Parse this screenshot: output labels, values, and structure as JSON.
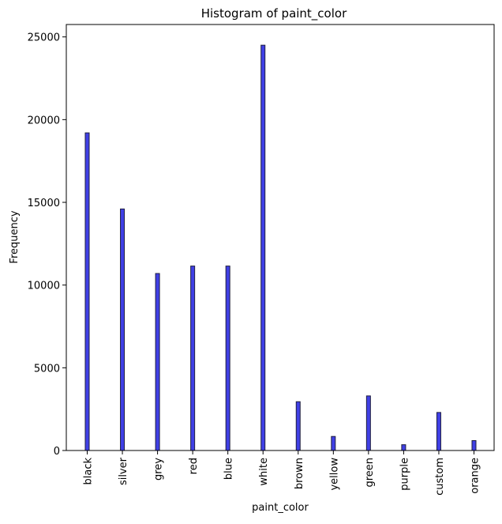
{
  "chart_data": {
    "type": "bar",
    "title": "Histogram of paint_color",
    "xlabel": "paint_color",
    "ylabel": "Frequency",
    "categories": [
      "black",
      "silver",
      "grey",
      "red",
      "blue",
      "white",
      "brown",
      "yellow",
      "green",
      "purple",
      "custom",
      "orange"
    ],
    "values": [
      19200,
      14600,
      10700,
      11150,
      11150,
      24500,
      2950,
      850,
      3300,
      350,
      2300,
      600
    ],
    "ylim": [
      0,
      25750
    ],
    "yticks": [
      0,
      5000,
      10000,
      15000,
      20000,
      25000
    ],
    "ytick_labels": [
      "0",
      "5000",
      "10000",
      "15000",
      "20000",
      "25000"
    ],
    "grid": false,
    "bar_color": "#0000dd",
    "bar_edge_color": "#1f1f3f"
  }
}
